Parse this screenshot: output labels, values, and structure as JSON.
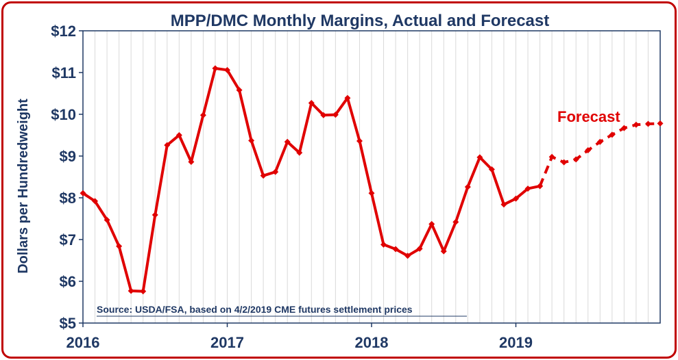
{
  "chart_data": {
    "type": "line",
    "title": "MPP/DMC Monthly Margins, Actual and Forecast",
    "ylabel": "Dollars per Hundredweight",
    "xlabel": "",
    "ylim": [
      5,
      12
    ],
    "ytick_values": [
      5,
      6,
      7,
      8,
      9,
      10,
      11,
      12
    ],
    "ytick_labels": [
      "$5",
      "$6",
      "$7",
      "$8",
      "$9",
      "$10",
      "$11",
      "$12"
    ],
    "xtick_labels": [
      "2016",
      "2017",
      "2018",
      "2019"
    ],
    "xtick_positions": [
      0,
      12,
      24,
      36
    ],
    "grid": "vertical monthly gridlines",
    "annotations": {
      "forecast_label": "Forecast",
      "source": "Source:  USDA/FSA, based on 4/2/2019 CME futures settlement prices"
    },
    "colors": {
      "line": "#e00000",
      "text": "#1f3864",
      "border": "#c00000"
    },
    "series": [
      {
        "style": "solid",
        "x": [
          0,
          1,
          2,
          3,
          4,
          5,
          6,
          7,
          8,
          9,
          10,
          11,
          12,
          13,
          14,
          15,
          16,
          17,
          18,
          19,
          20,
          21,
          22,
          23,
          24,
          25,
          26,
          27,
          28,
          29,
          30,
          31,
          32,
          33,
          34,
          35,
          36,
          37,
          38
        ],
        "values": [
          8.11,
          7.92,
          7.47,
          6.84,
          5.77,
          5.76,
          7.59,
          9.26,
          9.5,
          8.86,
          9.98,
          11.1,
          11.06,
          10.58,
          9.37,
          8.53,
          8.62,
          9.34,
          9.08,
          10.27,
          9.98,
          9.99,
          10.39,
          9.36,
          8.11,
          6.88,
          6.77,
          6.61,
          6.78,
          7.37,
          6.72,
          7.42,
          8.26,
          8.97,
          8.68,
          7.84,
          7.98,
          8.22,
          8.28
        ]
      },
      {
        "style": "dashed",
        "x": [
          38,
          39,
          40,
          41,
          42,
          43,
          44,
          45,
          46,
          47,
          48
        ],
        "values": [
          8.28,
          8.98,
          8.85,
          8.92,
          9.14,
          9.34,
          9.51,
          9.67,
          9.75,
          9.77,
          9.78
        ]
      }
    ]
  }
}
